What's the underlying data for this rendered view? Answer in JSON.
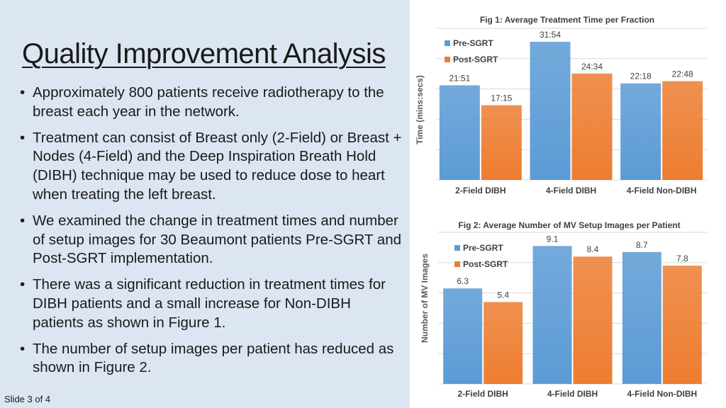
{
  "slide": {
    "title": "Quality Improvement Analysis",
    "bullets": [
      "Approximately 800 patients receive radiotherapy to the breast each year in the network.",
      "Treatment can consist of Breast only (2-Field) or Breast + Nodes (4-Field) and the Deep Inspiration Breath Hold (DIBH) technique may be used to reduce dose to heart when treating the left breast.",
      "We examined the change in treatment times and number of setup images for 30 Beaumont patients Pre-SGRT and Post-SGRT implementation.",
      "There was a significant reduction in treatment times for DIBH patients and a small increase for Non-DIBH patients as shown in Figure 1.",
      "The number of setup images per patient has reduced as shown in Figure 2."
    ],
    "footer": "Slide 3 of 4"
  },
  "colors": {
    "pre": "#5b9bd5",
    "post": "#ed7d31",
    "left_bg": "#dce6f2"
  },
  "chart_data": [
    {
      "type": "bar",
      "title": "Fig 1: Average Treatment Time per Fraction",
      "xlabel": "",
      "ylabel": "Time (mins:secs)",
      "categories": [
        "2-Field DIBH",
        "4-Field DIBH",
        "4-Field Non-DIBH"
      ],
      "series": [
        {
          "name": "Pre-SGRT",
          "values": [
            21.85,
            31.9,
            22.3
          ],
          "labels": [
            "21:51",
            "31:54",
            "22:18"
          ]
        },
        {
          "name": "Post-SGRT",
          "values": [
            17.25,
            24.57,
            22.8
          ],
          "labels": [
            "17:15",
            "24:34",
            "22:48"
          ]
        }
      ],
      "ylim": [
        0,
        35
      ],
      "grid": true,
      "legend": "top-left"
    },
    {
      "type": "bar",
      "title": "Fig 2: Average Number of MV Setup Images per Patient",
      "xlabel": "",
      "ylabel": "Number of MV Images",
      "categories": [
        "2-Field DIBH",
        "4-Field DIBH",
        "4-Field Non-DIBH"
      ],
      "series": [
        {
          "name": "Pre-SGRT",
          "values": [
            6.3,
            9.1,
            8.7
          ],
          "labels": [
            "6.3",
            "9.1",
            "8.7"
          ]
        },
        {
          "name": "Post-SGRT",
          "values": [
            5.4,
            8.4,
            7.8
          ],
          "labels": [
            "5.4",
            "8.4",
            "7.8"
          ]
        }
      ],
      "ylim": [
        0,
        10
      ],
      "grid": true,
      "legend": "top-left"
    }
  ]
}
